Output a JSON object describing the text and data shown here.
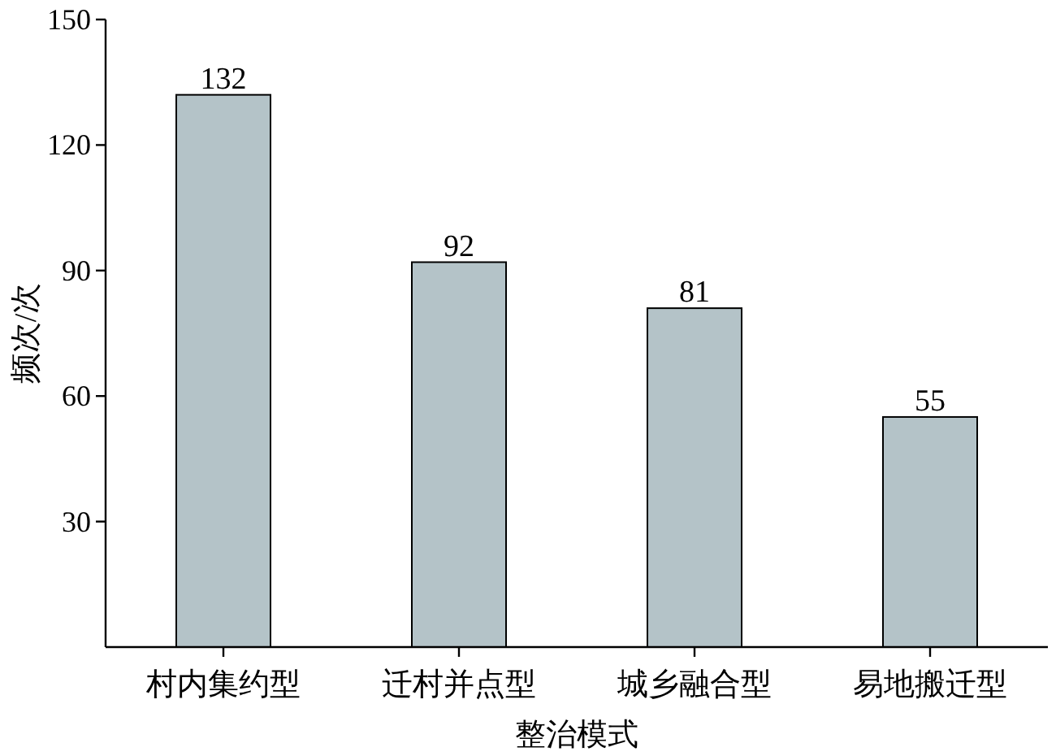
{
  "chart_data": {
    "type": "bar",
    "xlabel": "整治模式",
    "ylabel": "频次/次",
    "categories": [
      "村内集约型",
      "迁村并点型",
      "城乡融合型",
      "易地搬迁型"
    ],
    "values": [
      132,
      92,
      81,
      55
    ],
    "color": "#b4c3c8",
    "ylim": [
      0,
      150
    ],
    "yticks": [
      30,
      60,
      90,
      120,
      150
    ],
    "data_labels": true
  }
}
